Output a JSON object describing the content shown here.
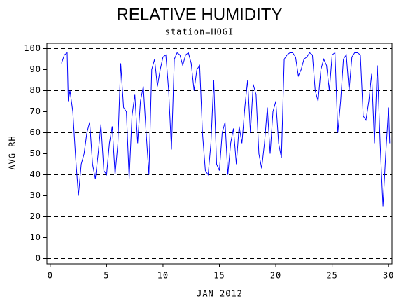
{
  "chart_data": {
    "type": "line",
    "title": "RELATIVE HUMIDITY",
    "subtitle": "station=HOGI",
    "x_label": "JAN 2012",
    "y_label": "AVG_RH",
    "x": [
      1.0,
      1.25,
      1.5,
      1.6,
      1.75,
      2.0,
      2.25,
      2.5,
      2.75,
      3.0,
      3.25,
      3.5,
      3.75,
      4.0,
      4.25,
      4.5,
      4.75,
      5.0,
      5.25,
      5.5,
      5.75,
      6.0,
      6.25,
      6.5,
      6.75,
      7.0,
      7.25,
      7.5,
      7.75,
      8.0,
      8.25,
      8.5,
      8.75,
      9.0,
      9.25,
      9.5,
      9.75,
      10.0,
      10.25,
      10.5,
      10.75,
      11.0,
      11.25,
      11.5,
      11.75,
      12.0,
      12.25,
      12.5,
      12.75,
      13.0,
      13.25,
      13.5,
      13.75,
      14.0,
      14.25,
      14.5,
      14.75,
      15.0,
      15.25,
      15.5,
      15.75,
      16.0,
      16.25,
      16.5,
      16.75,
      17.0,
      17.25,
      17.5,
      17.75,
      18.0,
      18.25,
      18.5,
      18.75,
      19.0,
      19.25,
      19.5,
      19.75,
      20.0,
      20.25,
      20.5,
      20.75,
      21.0,
      21.25,
      21.5,
      21.75,
      22.0,
      22.25,
      22.5,
      22.75,
      23.0,
      23.25,
      23.5,
      23.75,
      24.0,
      24.25,
      24.5,
      24.75,
      25.0,
      25.25,
      25.5,
      25.75,
      26.0,
      26.25,
      26.5,
      26.75,
      27.0,
      27.25,
      27.5,
      27.75,
      28.0,
      28.25,
      28.5,
      28.75,
      29.0,
      29.25,
      29.5,
      29.75,
      30.0,
      30.1
    ],
    "series": [
      {
        "name": "AVG_RH",
        "color": "#0000ff",
        "values": [
          93,
          97,
          98,
          75,
          80,
          70,
          48,
          30,
          45,
          50,
          60,
          65,
          45,
          38,
          50,
          64,
          42,
          40,
          55,
          63,
          40,
          55,
          93,
          72,
          70,
          38,
          68,
          78,
          55,
          75,
          82,
          60,
          40,
          90,
          95,
          82,
          90,
          96,
          97,
          80,
          52,
          95,
          98,
          97,
          92,
          97,
          98,
          93,
          80,
          90,
          92,
          60,
          42,
          40,
          55,
          85,
          45,
          42,
          60,
          65,
          40,
          55,
          62,
          45,
          63,
          55,
          72,
          85,
          60,
          83,
          78,
          50,
          43,
          55,
          72,
          50,
          70,
          75,
          55,
          48,
          95,
          97,
          98,
          98,
          96,
          87,
          90,
          95,
          96,
          98,
          97,
          80,
          75,
          90,
          95,
          92,
          80,
          97,
          98,
          60,
          75,
          95,
          97,
          80,
          96,
          98,
          98,
          97,
          68,
          66,
          75,
          88,
          55,
          92,
          55,
          25,
          50,
          72,
          55
        ]
      }
    ],
    "xlim": [
      -0.3,
      30.3
    ],
    "ylim": [
      -2.5,
      102.5
    ],
    "xticks": [
      0,
      5,
      10,
      15,
      20,
      25,
      30
    ],
    "yticks": [
      0,
      10,
      20,
      30,
      40,
      50,
      60,
      70,
      80,
      90,
      100
    ],
    "grid": [
      0,
      20,
      40,
      60,
      80,
      100
    ]
  }
}
